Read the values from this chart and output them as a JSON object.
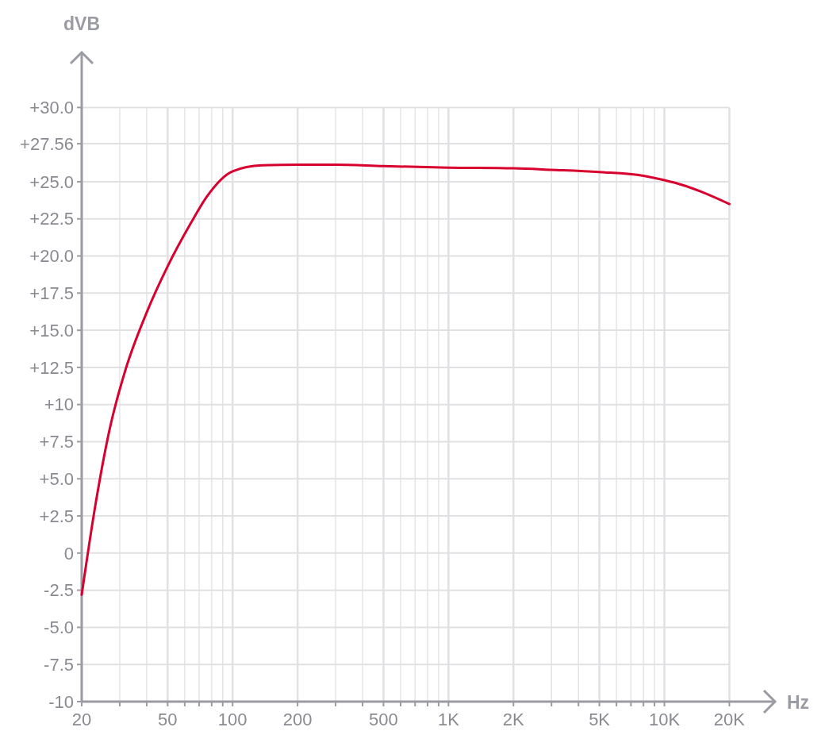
{
  "chart_data": {
    "type": "line",
    "xlabel": "Hz",
    "ylabel": "dVB",
    "log": "x",
    "grid": true,
    "xlim": [
      20,
      32000
    ],
    "ylim": [
      -10,
      33.6
    ],
    "xticks": [
      20,
      {
        "value": 30,
        "label": null
      },
      {
        "value": 40,
        "label": null
      },
      50,
      {
        "value": 60,
        "label": null
      },
      {
        "value": 70,
        "label": null
      },
      {
        "value": 80,
        "label": null
      },
      {
        "value": 90,
        "label": null
      },
      100,
      200,
      {
        "value": 300,
        "label": null
      },
      {
        "value": 400,
        "label": null
      },
      500,
      {
        "value": 600,
        "label": null
      },
      {
        "value": 700,
        "label": null
      },
      {
        "value": 800,
        "label": null
      },
      {
        "value": 900,
        "label": null
      },
      {
        "value": 1000,
        "label": "1K"
      },
      {
        "value": 2000,
        "label": "2K"
      },
      {
        "value": 3000,
        "label": null
      },
      {
        "value": 4000,
        "label": null
      },
      {
        "value": 5000,
        "label": "5K"
      },
      {
        "value": 6000,
        "label": null
      },
      {
        "value": 7000,
        "label": null
      },
      {
        "value": 8000,
        "label": null
      },
      {
        "value": 9000,
        "label": null
      },
      {
        "value": 10000,
        "label": "10K"
      },
      {
        "value": 20000,
        "label": "20K"
      }
    ],
    "yticks": [
      {
        "value": 30,
        "label": "+30.0"
      },
      {
        "value": 27.56,
        "label": "+27.56"
      },
      {
        "value": 25,
        "label": "+25.0"
      },
      {
        "value": 22.5,
        "label": "+22.5"
      },
      {
        "value": 20,
        "label": "+20.0"
      },
      {
        "value": 17.5,
        "label": "+17.5"
      },
      {
        "value": 15,
        "label": "+15.0"
      },
      {
        "value": 12.5,
        "label": "+12.5"
      },
      {
        "value": 10,
        "label": "+10"
      },
      {
        "value": 7.5,
        "label": "+7.5"
      },
      {
        "value": 5,
        "label": "+5.0"
      },
      {
        "value": 2.5,
        "label": "+2.5"
      },
      0,
      {
        "value": -2.5,
        "label": "-2.5"
      },
      {
        "value": -5,
        "label": "-5.0"
      },
      {
        "value": -7.5,
        "label": "-7.5"
      },
      -10
    ],
    "series": [
      {
        "color": "#d7002f",
        "x": [
          20,
          23,
          27,
          32,
          40,
          50,
          64,
          76,
          100,
          137,
          200,
          300,
          500,
          1000,
          2000,
          3000,
          5000,
          8000,
          10000,
          12000,
          15000,
          20000
        ],
        "values": [
          -2.8,
          3,
          8.4,
          12.4,
          16.2,
          19.3,
          22.2,
          24,
          25.7,
          26.1,
          26.15,
          26.15,
          26.05,
          25.95,
          25.9,
          25.8,
          25.65,
          25.4,
          25.1,
          24.8,
          24.3,
          23.5
        ]
      }
    ]
  }
}
